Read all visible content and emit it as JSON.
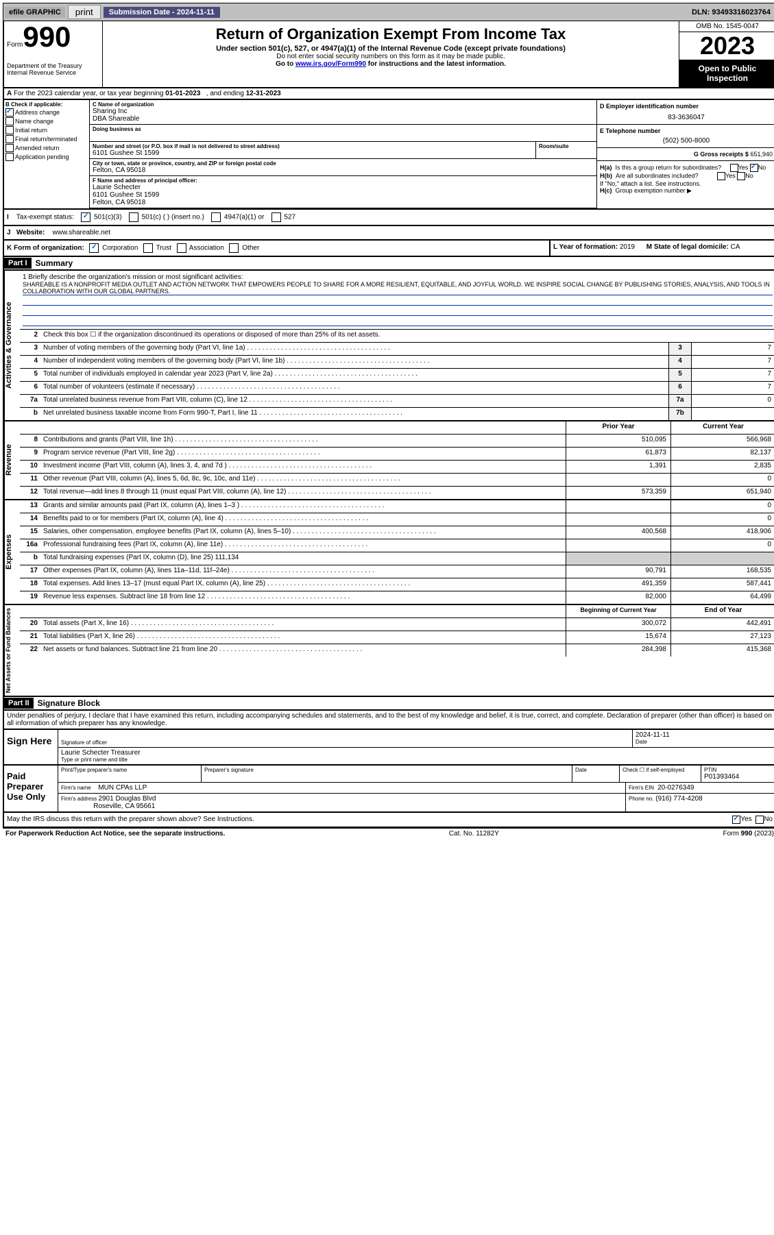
{
  "topbar": {
    "efile": "efile GRAPHIC",
    "print": "print",
    "subdate_label": "Submission Date - 2024-11-11",
    "dln": "DLN: 93493316023764"
  },
  "header": {
    "form_word": "Form",
    "form_num": "990",
    "dept": "Department of the Treasury\nInternal Revenue Service",
    "title": "Return of Organization Exempt From Income Tax",
    "sub": "Under section 501(c), 527, or 4947(a)(1) of the Internal Revenue Code (except private foundations)",
    "noss": "Do not enter social security numbers on this form as it may be made public.",
    "goto": "Go to www.irs.gov/Form990 for instructions and the latest information.",
    "omb": "OMB No. 1545-0047",
    "year": "2023",
    "open": "Open to Public Inspection"
  },
  "line_a": "A For the 2023 calendar year, or tax year beginning 01-01-2023   , and ending 12-31-2023",
  "box_b": {
    "title": "B Check if applicable:",
    "items": [
      "Address change",
      "Name change",
      "Initial return",
      "Final return/terminated",
      "Amended return",
      "Application pending"
    ],
    "checked": [
      true,
      false,
      false,
      false,
      false,
      false
    ]
  },
  "box_c": {
    "name_label": "C Name of organization",
    "name": "Sharing Inc",
    "dba": "DBA Shareable",
    "dba_label": "Doing business as",
    "addr_label": "Number and street (or P.O. box if mail is not delivered to street address)",
    "room_label": "Room/suite",
    "addr": "6101 Gushee St 1599",
    "city_label": "City or town, state or province, country, and ZIP or foreign postal code",
    "city": "Felton, CA  95018"
  },
  "box_d": {
    "label": "D Employer identification number",
    "value": "83-3636047"
  },
  "box_e": {
    "label": "E Telephone number",
    "value": "(502) 500-8000"
  },
  "box_g": {
    "label": "G Gross receipts $",
    "value": "651,940"
  },
  "box_f": {
    "label": "F Name and address of principal officer:",
    "name": "Laurie Schecter",
    "addr": "6101 Gushee St 1599",
    "city": "Felton, CA  95018"
  },
  "box_h": {
    "ha": "H(a)  Is this a group return for subordinates?",
    "hb": "H(b)  Are all subordinates included?",
    "hnote": "If \"No,\" attach a list. See instructions.",
    "hc": "H(c)  Group exemption number ",
    "yes": "Yes",
    "no": "No"
  },
  "box_i": {
    "label": "Tax-exempt status:",
    "opts": [
      "501(c)(3)",
      "501(c) (  ) (insert no.)",
      "4947(a)(1) or",
      "527"
    ],
    "checked_idx": 0
  },
  "box_j": {
    "label": "Website: ",
    "value": "www.shareable.net"
  },
  "box_k": {
    "label": "K Form of organization:",
    "opts": [
      "Corporation",
      "Trust",
      "Association",
      "Other"
    ],
    "checked_idx": 0
  },
  "box_l": {
    "label": "L Year of formation:",
    "value": "2019"
  },
  "box_m": {
    "label": "M State of legal domicile:",
    "value": "CA"
  },
  "part1": {
    "label": "Part I",
    "title": "Summary"
  },
  "mission": {
    "q": "1   Briefly describe the organization's mission or most significant activities:",
    "text": "SHAREABLE IS A NONPROFIT MEDIA OUTLET AND ACTION NETWORK THAT EMPOWERS PEOPLE TO SHARE FOR A MORE RESILIENT, EQUITABLE, AND JOYFUL WORLD. WE INSPIRE SOCIAL CHANGE BY PUBLISHING STORIES, ANALYSIS, AND TOOLS IN COLLABORATION WITH OUR GLOBAL PARTNERS."
  },
  "gov_lines": [
    {
      "n": "2",
      "d": "Check this box ☐ if the organization discontinued its operations or disposed of more than 25% of its net assets."
    },
    {
      "n": "3",
      "d": "Number of voting members of the governing body (Part VI, line 1a)",
      "box": "3",
      "v": "7"
    },
    {
      "n": "4",
      "d": "Number of independent voting members of the governing body (Part VI, line 1b)",
      "box": "4",
      "v": "7"
    },
    {
      "n": "5",
      "d": "Total number of individuals employed in calendar year 2023 (Part V, line 2a)",
      "box": "5",
      "v": "7"
    },
    {
      "n": "6",
      "d": "Total number of volunteers (estimate if necessary)",
      "box": "6",
      "v": "7"
    },
    {
      "n": "7a",
      "d": "Total unrelated business revenue from Part VIII, column (C), line 12",
      "box": "7a",
      "v": "0"
    },
    {
      "n": "b",
      "d": "Net unrelated business taxable income from Form 990-T, Part I, line 11",
      "box": "7b",
      "v": ""
    }
  ],
  "col_headers": {
    "prior": "Prior Year",
    "current": "Current Year"
  },
  "revenue": [
    {
      "n": "8",
      "d": "Contributions and grants (Part VIII, line 1h)",
      "p": "510,095",
      "c": "566,968"
    },
    {
      "n": "9",
      "d": "Program service revenue (Part VIII, line 2g)",
      "p": "61,873",
      "c": "82,137"
    },
    {
      "n": "10",
      "d": "Investment income (Part VIII, column (A), lines 3, 4, and 7d )",
      "p": "1,391",
      "c": "2,835"
    },
    {
      "n": "11",
      "d": "Other revenue (Part VIII, column (A), lines 5, 6d, 8c, 9c, 10c, and 11e)",
      "p": "",
      "c": "0"
    },
    {
      "n": "12",
      "d": "Total revenue—add lines 8 through 11 (must equal Part VIII, column (A), line 12)",
      "p": "573,359",
      "c": "651,940"
    }
  ],
  "expenses": [
    {
      "n": "13",
      "d": "Grants and similar amounts paid (Part IX, column (A), lines 1–3 )",
      "p": "",
      "c": "0"
    },
    {
      "n": "14",
      "d": "Benefits paid to or for members (Part IX, column (A), line 4)",
      "p": "",
      "c": "0"
    },
    {
      "n": "15",
      "d": "Salaries, other compensation, employee benefits (Part IX, column (A), lines 5–10)",
      "p": "400,568",
      "c": "418,906"
    },
    {
      "n": "16a",
      "d": "Professional fundraising fees (Part IX, column (A), line 11e)",
      "p": "",
      "c": "0"
    },
    {
      "n": "b",
      "d": "Total fundraising expenses (Part IX, column (D), line 25) 111,134",
      "shade": true
    },
    {
      "n": "17",
      "d": "Other expenses (Part IX, column (A), lines 11a–11d, 11f–24e)",
      "p": "90,791",
      "c": "168,535"
    },
    {
      "n": "18",
      "d": "Total expenses. Add lines 13–17 (must equal Part IX, column (A), line 25)",
      "p": "491,359",
      "c": "587,441"
    },
    {
      "n": "19",
      "d": "Revenue less expenses. Subtract line 18 from line 12",
      "p": "82,000",
      "c": "64,499"
    }
  ],
  "netassets_headers": {
    "begin": "Beginning of Current Year",
    "end": "End of Year"
  },
  "netassets": [
    {
      "n": "20",
      "d": "Total assets (Part X, line 16)",
      "p": "300,072",
      "c": "442,491"
    },
    {
      "n": "21",
      "d": "Total liabilities (Part X, line 26)",
      "p": "15,674",
      "c": "27,123"
    },
    {
      "n": "22",
      "d": "Net assets or fund balances. Subtract line 21 from line 20",
      "p": "284,398",
      "c": "415,368"
    }
  ],
  "vtabs": {
    "gov": "Activities & Governance",
    "rev": "Revenue",
    "exp": "Expenses",
    "net": "Net Assets or Fund Balances"
  },
  "part2": {
    "label": "Part II",
    "title": "Signature Block"
  },
  "perjury": "Under penalties of perjury, I declare that I have examined this return, including accompanying schedules and statements, and to the best of my knowledge and belief, it is true, correct, and complete. Declaration of preparer (other than officer) is based on all information of which preparer has any knowledge.",
  "sign": {
    "here": "Sign Here",
    "sig_label": "Signature of officer",
    "date": "2024-11-11",
    "date_label": "Date",
    "name": "Laurie Schecter Treasurer",
    "name_label": "Type or print name and title"
  },
  "paid": {
    "label": "Paid Preparer Use Only",
    "prep_name_label": "Print/Type preparer's name",
    "prep_sig_label": "Preparer's signature",
    "date_label": "Date",
    "check_label": "Check ☐ if self-employed",
    "ptin_label": "PTIN",
    "ptin": "P01393464",
    "firm_name_label": "Firm's name ",
    "firm_name": "MUN CPAs LLP",
    "firm_ein_label": "Firm's EIN ",
    "firm_ein": "20-0276349",
    "firm_addr_label": "Firm's address ",
    "firm_addr": "2901 Douglas Blvd",
    "firm_city": "Roseville, CA  95661",
    "phone_label": "Phone no.",
    "phone": "(916) 774-4208"
  },
  "discuss": "May the IRS discuss this return with the preparer shown above? See Instructions.",
  "footer": {
    "pra": "For Paperwork Reduction Act Notice, see the separate instructions.",
    "cat": "Cat. No. 11282Y",
    "form": "Form 990 (2023)"
  }
}
